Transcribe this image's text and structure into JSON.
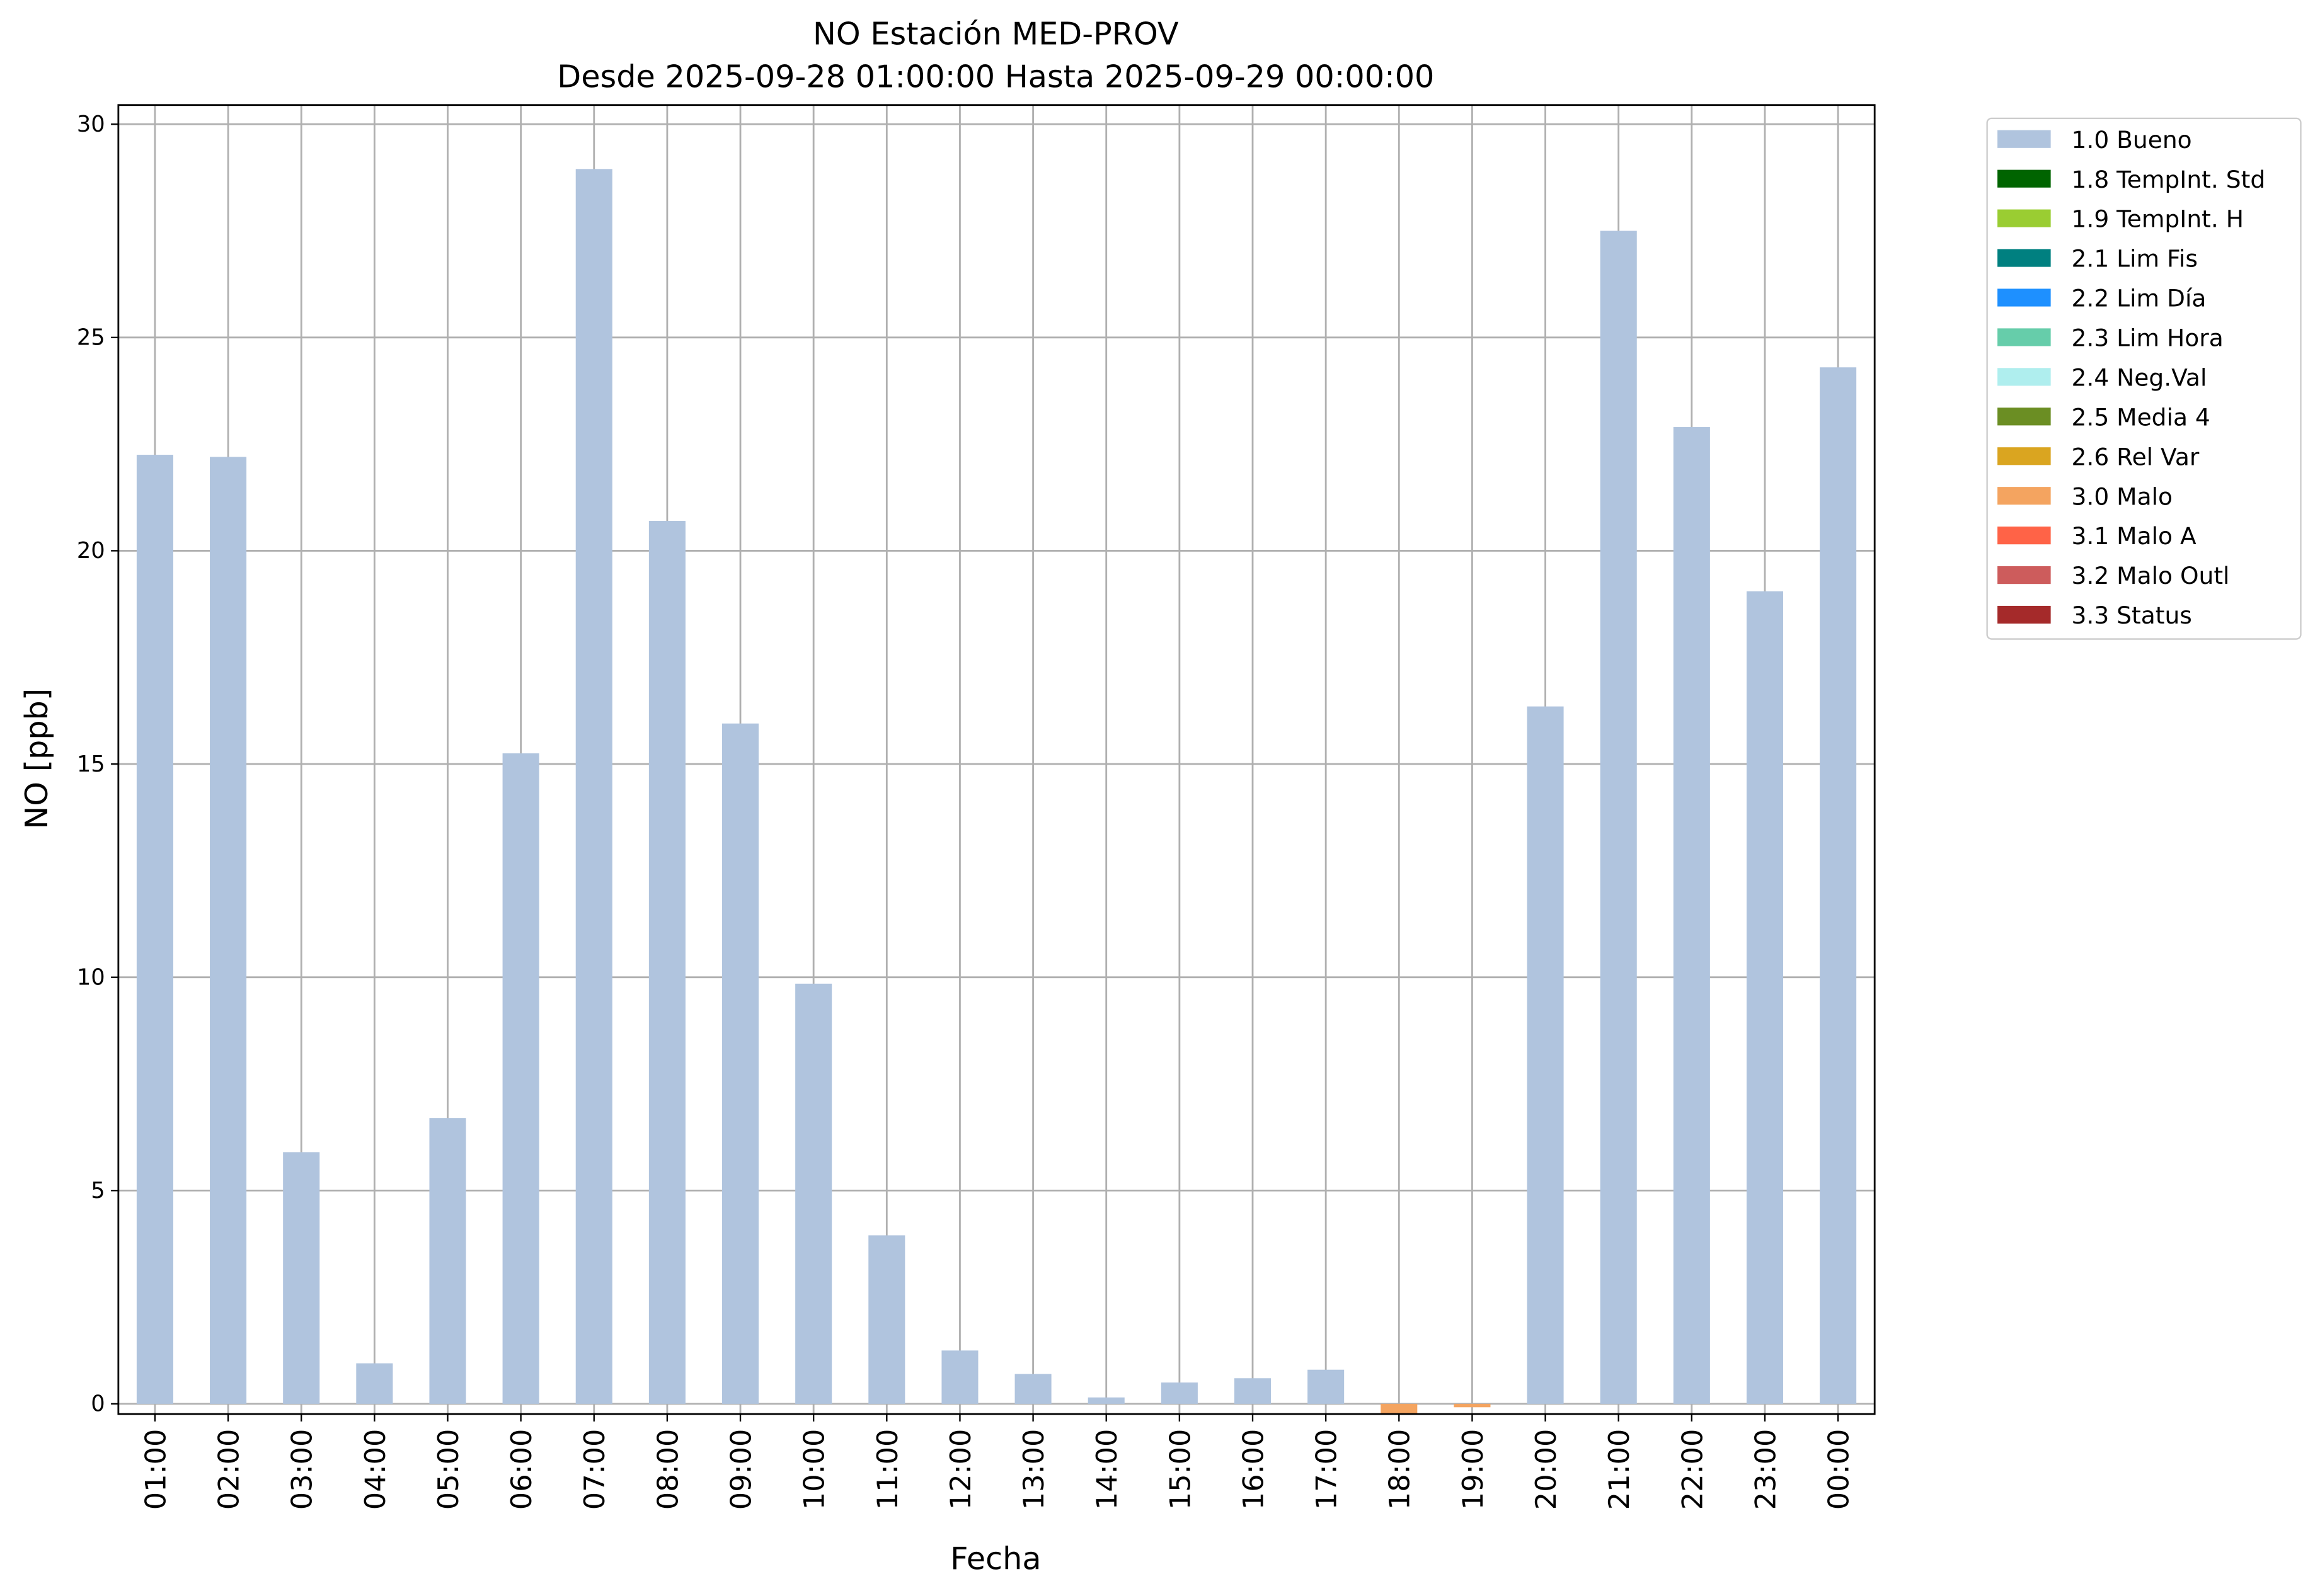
{
  "chart_data": {
    "type": "bar",
    "stacked": true,
    "title": "NO Estación MED-PROV",
    "subtitle": "Desde 2025-09-28 01:00:00 Hasta 2025-09-29 00:00:00",
    "xlabel": "Fecha",
    "ylabel": "NO [ppb]",
    "categories": [
      "01:00",
      "02:00",
      "03:00",
      "04:00",
      "05:00",
      "06:00",
      "07:00",
      "08:00",
      "09:00",
      "10:00",
      "11:00",
      "12:00",
      "13:00",
      "14:00",
      "15:00",
      "16:00",
      "17:00",
      "18:00",
      "19:00",
      "20:00",
      "21:00",
      "22:00",
      "23:00",
      "00:00"
    ],
    "series": [
      {
        "name": "1.0 Bueno",
        "color": "#b0c4de",
        "values": [
          22.25,
          22.2,
          5.9,
          0.95,
          6.7,
          15.25,
          28.95,
          20.7,
          15.95,
          9.85,
          3.95,
          1.25,
          0.7,
          0.15,
          0.5,
          0.6,
          0.8,
          null,
          null,
          16.35,
          27.5,
          22.9,
          19.05,
          24.3
        ]
      },
      {
        "name": "1.8 TempInt. Std",
        "color": "#006400",
        "values": [
          null,
          null,
          null,
          null,
          null,
          null,
          null,
          null,
          null,
          null,
          null,
          null,
          null,
          null,
          null,
          null,
          null,
          null,
          null,
          null,
          null,
          null,
          null,
          null
        ]
      },
      {
        "name": "1.9 TempInt. H",
        "color": "#9acd32",
        "values": [
          null,
          null,
          null,
          null,
          null,
          null,
          null,
          null,
          null,
          null,
          null,
          null,
          null,
          null,
          null,
          null,
          null,
          null,
          null,
          null,
          null,
          null,
          null,
          null
        ]
      },
      {
        "name": "2.1 Lim Fis",
        "color": "#008080",
        "values": [
          null,
          null,
          null,
          null,
          null,
          null,
          null,
          null,
          null,
          null,
          null,
          null,
          null,
          null,
          null,
          null,
          null,
          null,
          null,
          null,
          null,
          null,
          null,
          null
        ]
      },
      {
        "name": "2.2 Lim Día",
        "color": "#1e90ff",
        "values": [
          null,
          null,
          null,
          null,
          null,
          null,
          null,
          null,
          null,
          null,
          null,
          null,
          null,
          null,
          null,
          null,
          null,
          null,
          null,
          null,
          null,
          null,
          null,
          null
        ]
      },
      {
        "name": "2.3 Lim Hora",
        "color": "#66cdaa",
        "values": [
          null,
          null,
          null,
          null,
          null,
          null,
          null,
          null,
          null,
          null,
          null,
          null,
          null,
          null,
          null,
          null,
          null,
          null,
          null,
          null,
          null,
          null,
          null,
          null
        ]
      },
      {
        "name": "2.4 Neg.Val",
        "color": "#afeeee",
        "values": [
          null,
          null,
          null,
          null,
          null,
          null,
          null,
          null,
          null,
          null,
          null,
          null,
          null,
          null,
          null,
          null,
          null,
          null,
          null,
          null,
          null,
          null,
          null,
          null
        ]
      },
      {
        "name": "2.5 Media 4",
        "color": "#6b8e23",
        "values": [
          null,
          null,
          null,
          null,
          null,
          null,
          null,
          null,
          null,
          null,
          null,
          null,
          null,
          null,
          null,
          null,
          null,
          null,
          null,
          null,
          null,
          null,
          null,
          null
        ]
      },
      {
        "name": "2.6 Rel Var",
        "color": "#daa520",
        "values": [
          null,
          null,
          null,
          null,
          null,
          null,
          null,
          null,
          null,
          null,
          null,
          null,
          null,
          null,
          null,
          null,
          null,
          null,
          null,
          null,
          null,
          null,
          null,
          null
        ]
      },
      {
        "name": "3.0 Malo",
        "color": "#f4a460",
        "values": [
          null,
          null,
          null,
          null,
          null,
          null,
          null,
          null,
          null,
          null,
          null,
          null,
          null,
          null,
          null,
          null,
          null,
          -0.25,
          -0.08,
          null,
          null,
          null,
          null,
          null
        ]
      },
      {
        "name": "3.1 Malo A",
        "color": "#ff6347",
        "values": [
          null,
          null,
          null,
          null,
          null,
          null,
          null,
          null,
          null,
          null,
          null,
          null,
          null,
          null,
          null,
          null,
          null,
          null,
          null,
          null,
          null,
          null,
          null,
          null
        ]
      },
      {
        "name": "3.2 Malo Outl",
        "color": "#cd5c5c",
        "values": [
          null,
          null,
          null,
          null,
          null,
          null,
          null,
          null,
          null,
          null,
          null,
          null,
          null,
          null,
          null,
          null,
          null,
          null,
          null,
          null,
          null,
          null,
          null,
          null
        ]
      },
      {
        "name": "3.3 Status",
        "color": "#a52a2a",
        "values": [
          null,
          null,
          null,
          null,
          null,
          null,
          null,
          null,
          null,
          null,
          null,
          null,
          null,
          null,
          null,
          null,
          null,
          null,
          null,
          null,
          null,
          null,
          null,
          null
        ]
      }
    ],
    "ylim": [
      -0.24,
      30.45
    ],
    "yticks": [
      0,
      5,
      10,
      15,
      20,
      25,
      30
    ],
    "grid": true,
    "legend": "outside upper right"
  }
}
